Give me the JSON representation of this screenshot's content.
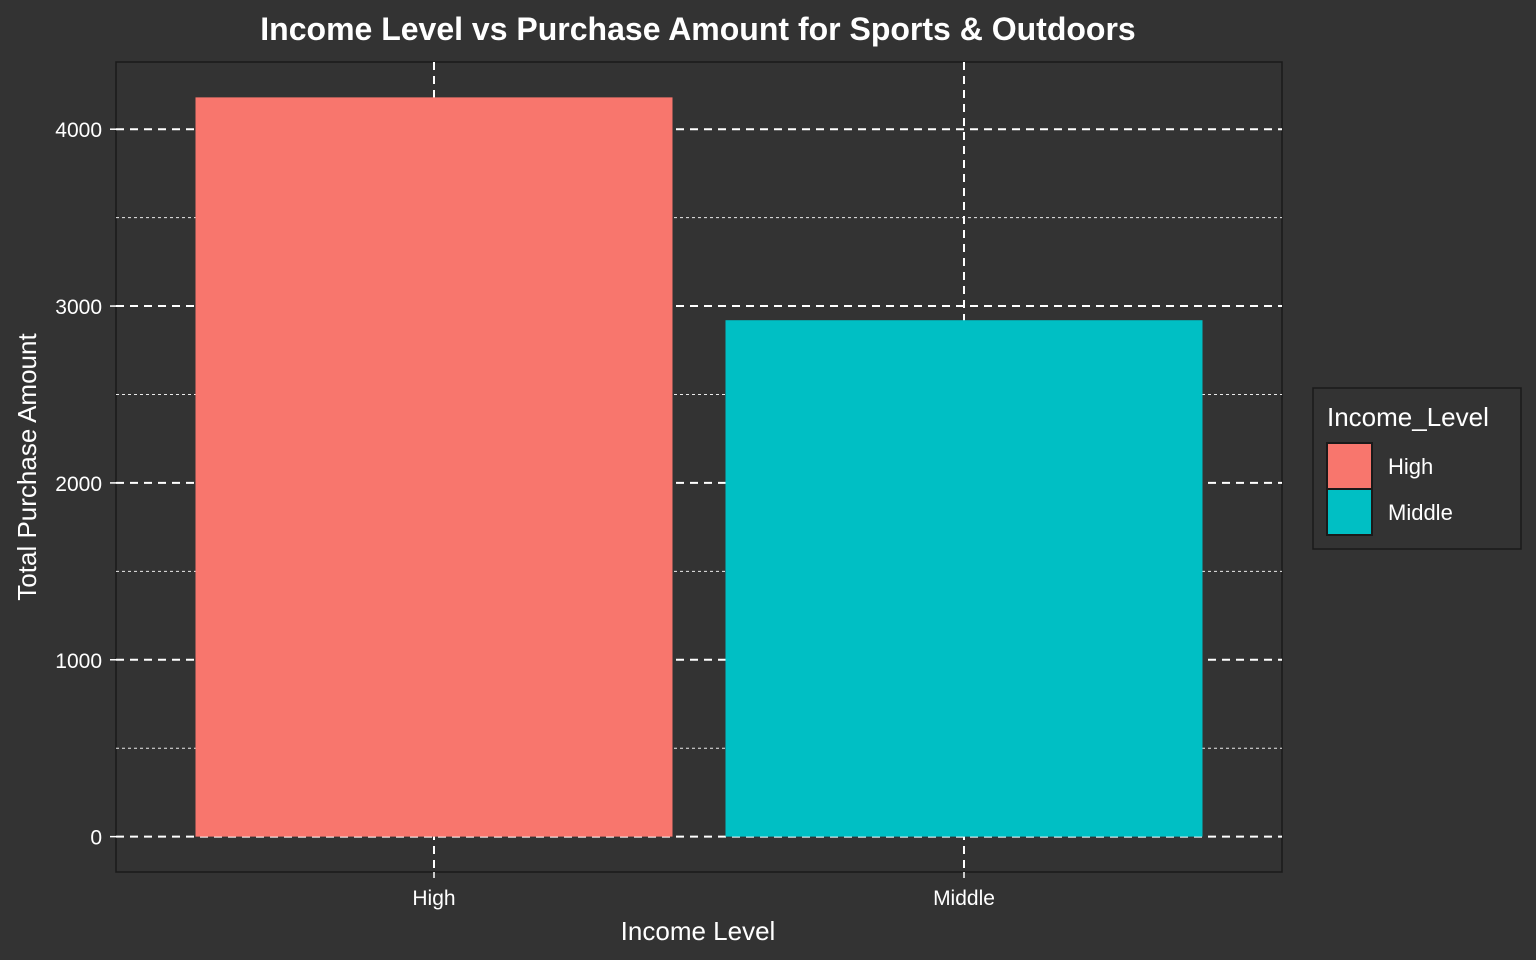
{
  "chart_data": {
    "type": "bar",
    "title": "Income Level vs Purchase Amount for Sports & Outdoors",
    "xlabel": "Income Level",
    "ylabel": "Total Purchase Amount",
    "categories": [
      "High",
      "Middle"
    ],
    "values": [
      4180,
      2920
    ],
    "colors": [
      "#F8766D",
      "#00BFC4"
    ],
    "ylim": [
      -200,
      4380
    ],
    "yticks": [
      0,
      1000,
      2000,
      3000,
      4000
    ],
    "ytick_labels": [
      "0",
      "1000",
      "2000",
      "3000",
      "4000"
    ],
    "grid": true,
    "legend": {
      "title": "Income_Level",
      "placement": "right",
      "entries": [
        "High",
        "Middle"
      ]
    },
    "background_color": "#333333",
    "text_color": "#ffffff",
    "grid_color": "#ffffff"
  }
}
